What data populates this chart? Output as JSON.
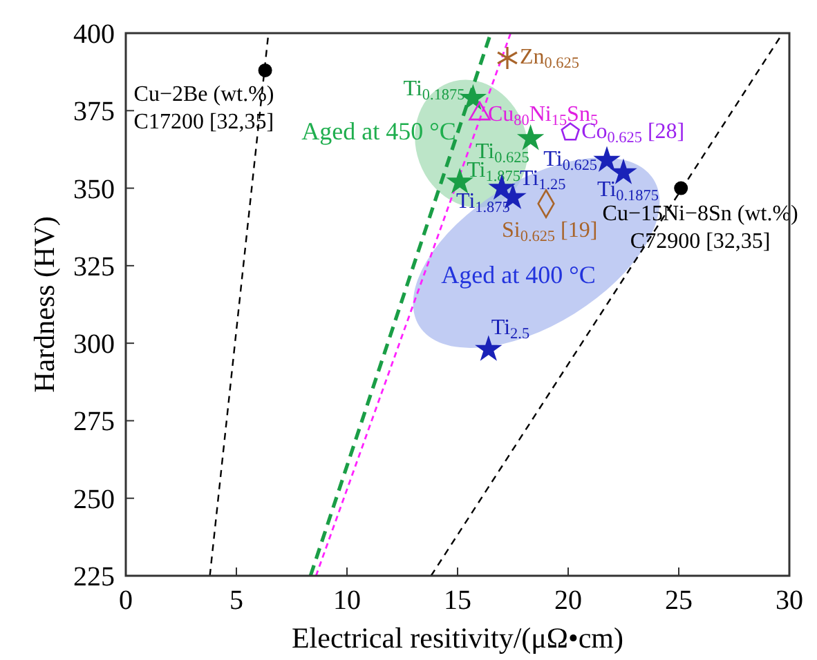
{
  "chart_data": {
    "type": "scatter",
    "xlabel": "Electrical resitivity/(μΩ•cm)",
    "ylabel": "Hardness (HV)",
    "xlim": [
      0,
      30
    ],
    "ylim": [
      225,
      400
    ],
    "xticks": [
      0,
      5,
      10,
      15,
      20,
      25,
      30
    ],
    "yticks": [
      225,
      250,
      275,
      300,
      325,
      350,
      375,
      400
    ],
    "grid": false,
    "annotations": [
      "Aged at 450 °C",
      "Aged at 400 °C"
    ],
    "series": [
      {
        "type": "line",
        "line_style": "dashed",
        "color": "#000000",
        "x": [
          3.8,
          6.45
        ],
        "values": [
          225,
          400
        ]
      },
      {
        "type": "line",
        "line_style": "dashed",
        "color": "#000000",
        "x": [
          13.8,
          29.7
        ],
        "values": [
          225,
          400
        ]
      },
      {
        "type": "line",
        "line_style": "dashed",
        "color": "#1a9e46",
        "x": [
          8.35,
          16.5
        ],
        "values": [
          225,
          400
        ]
      },
      {
        "type": "line",
        "line_style": "dashed",
        "color": "#ff22ff",
        "x": [
          8.6,
          17.4
        ],
        "values": [
          225,
          400
        ]
      },
      {
        "type": "scatter",
        "marker": "circle",
        "color": "#000000",
        "name": "Cu−2Be (wt.%)\nC17200 [32,35]",
        "x": [
          6.3
        ],
        "values": [
          388
        ]
      },
      {
        "type": "scatter",
        "marker": "circle",
        "color": "#000000",
        "name": "Cu−15Ni−8Sn (wt.%)\nC72900 [32,35]",
        "x": [
          25.1
        ],
        "values": [
          350
        ]
      },
      {
        "type": "scatter",
        "marker": "cross",
        "color": "#a8642a",
        "name": "Zn$_{0.625}$",
        "x": [
          17.25
        ],
        "values": [
          392
        ]
      },
      {
        "type": "scatter",
        "marker": "star",
        "color": "#1a9e46",
        "name": "Ti$_{0.1875}$",
        "x": [
          15.7
        ],
        "values": [
          379
        ]
      },
      {
        "type": "scatter",
        "marker": "triangle",
        "color": "#e020e0",
        "name": "Cu$_{80}$Ni$_{15}$Sn$_{5}$",
        "x": [
          16.0
        ],
        "values": [
          374
        ]
      },
      {
        "type": "scatter",
        "marker": "star",
        "color": "#1a9e46",
        "name": "Ti$_{0.625}$",
        "x": [
          18.3
        ],
        "values": [
          366
        ]
      },
      {
        "type": "scatter",
        "marker": "star",
        "color": "#1a9e46",
        "name": "Ti$_{1.875}$",
        "x": [
          15.1
        ],
        "values": [
          352
        ]
      },
      {
        "color": "#9b22ee",
        "name": "Co$_{0.625}$ [28]",
        "x": [
          20.1
        ],
        "values": [
          368
        ]
      },
      {
        "type": "scatter",
        "marker": "star",
        "color": "#1a22b8",
        "name": "Ti$_{0.625}$",
        "x": [
          21.75
        ],
        "values": [
          359
        ]
      },
      {
        "type": "scatter",
        "marker": "star",
        "color": "#1a22b8",
        "name": "Ti$_{0.1875}$",
        "x": [
          22.5
        ],
        "values": [
          355
        ]
      },
      {
        "type": "scatter",
        "marker": "star",
        "color": "#1a22b8",
        "name": "Ti$_{1.875}$",
        "x": [
          17.0
        ],
        "values": [
          350
        ]
      },
      {
        "type": "scatter",
        "marker": "star",
        "color": "#1a22b8",
        "name": "Ti$_{1.25}$",
        "x": [
          17.5
        ],
        "values": [
          347
        ]
      },
      {
        "type": "scatter",
        "marker": "diamond",
        "color": "#a8642a",
        "name": "Si$_{0.625}$ [19]",
        "x": [
          19.0
        ],
        "values": [
          345
        ]
      },
      {
        "type": "scatter",
        "marker": "star",
        "color": "#1a22b8",
        "name": "Ti$_{2.5}$",
        "x": [
          16.4
        ],
        "values": [
          298
        ]
      }
    ]
  }
}
